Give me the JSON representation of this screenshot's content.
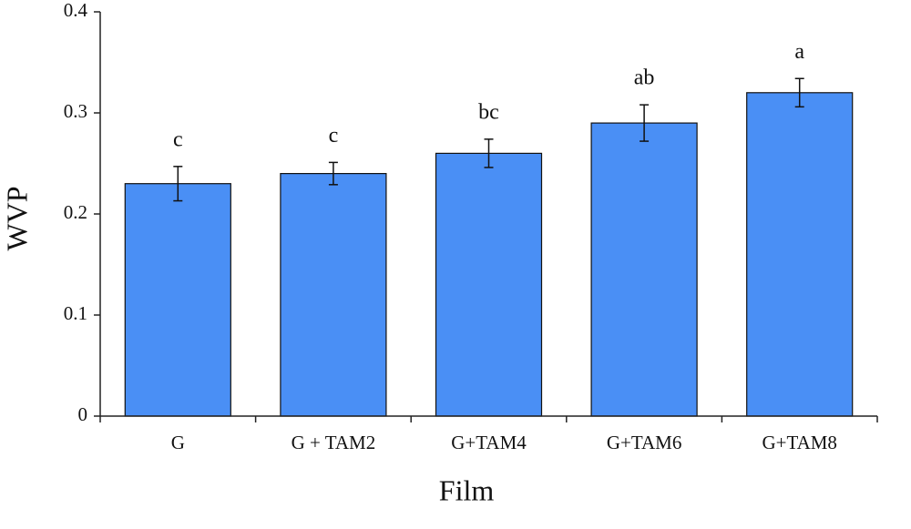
{
  "chart_data": {
    "type": "bar",
    "x_label": "Film",
    "y_label": "WVP",
    "categories": [
      "G",
      "G + TAM2",
      "G+TAM4",
      "G+TAM6",
      "G+TAM8"
    ],
    "values": [
      0.23,
      0.24,
      0.26,
      0.29,
      0.32
    ],
    "errors": [
      0.017,
      0.011,
      0.014,
      0.018,
      0.014
    ],
    "letters": [
      "c",
      "c",
      "bc",
      "ab",
      "a"
    ],
    "color": "#4a8ff5",
    "ylim": [
      0,
      0.4
    ],
    "yticks": [
      0,
      0.1,
      0.2,
      0.3,
      0.4
    ],
    "grid": false
  }
}
